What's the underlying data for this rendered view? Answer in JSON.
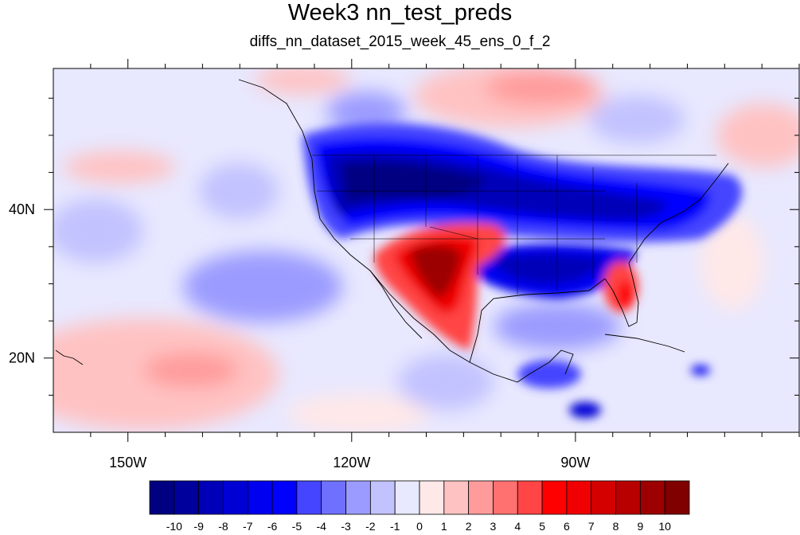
{
  "title": "Week3 nn_test_preds",
  "subtitle": "diffs_nn_dataset_2015_week_45_ens_0_f_2",
  "map": {
    "projection": "cylindrical-equidistant",
    "lon_range": [
      -160,
      -60
    ],
    "lat_range": [
      10,
      59
    ],
    "lon_ticks": [
      {
        "value": -150,
        "label": "150W"
      },
      {
        "value": -120,
        "label": "120W"
      },
      {
        "value": -90,
        "label": "90W"
      }
    ],
    "lat_ticks": [
      {
        "value": 40,
        "label": "40N"
      },
      {
        "value": 20,
        "label": "20N"
      }
    ],
    "features": [
      "coastlines",
      "us-state-boundaries",
      "country-boundaries"
    ]
  },
  "colorbar": {
    "levels": [
      "-10",
      "-9",
      "-8",
      "-7",
      "-6",
      "-5",
      "-4",
      "-3",
      "-2",
      "-1",
      "0",
      "1",
      "2",
      "3",
      "4",
      "5",
      "6",
      "7",
      "8",
      "9",
      "10"
    ],
    "colors": [
      "#000080",
      "#00009c",
      "#0000b8",
      "#0000d4",
      "#0000f0",
      "#0000ff",
      "#4545ff",
      "#7070ff",
      "#9b9bff",
      "#c2c2ff",
      "#e8e8ff",
      "#ffe8e8",
      "#ffc2c2",
      "#ff9b9b",
      "#ff7070",
      "#ff4545",
      "#ff0000",
      "#f00000",
      "#d40000",
      "#b80000",
      "#9c0000",
      "#800000"
    ]
  }
}
